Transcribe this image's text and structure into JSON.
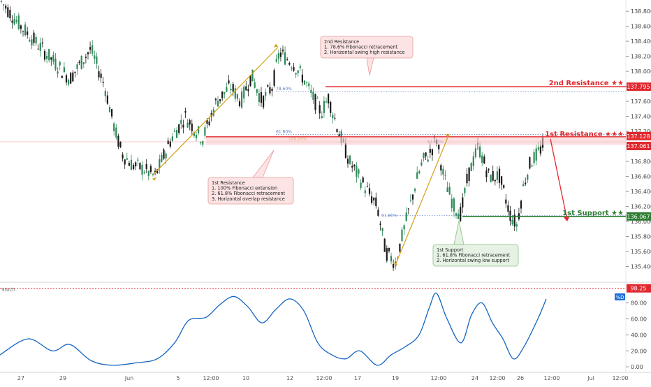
{
  "chart_data": [
    {
      "type": "candlestick",
      "instrument_pane": "price",
      "y_ticks": [
        135.4,
        135.6,
        135.8,
        136.0,
        136.2,
        136.4,
        136.6,
        136.8,
        137.0,
        137.2,
        137.4,
        137.6,
        137.8,
        138.0,
        138.2,
        138.4,
        138.6,
        138.8
      ],
      "ylim": [
        135.2,
        138.95
      ],
      "x_ticks": [
        "27",
        "29",
        "Jun",
        "5",
        "12:00",
        "10",
        "12",
        "12:00",
        "17",
        "19",
        "12:00",
        "24",
        "12:00",
        "26",
        "12:00",
        "Jul",
        "12:00"
      ],
      "price_labels": [
        {
          "label": "2nd Resistance ★★",
          "value": "137.795",
          "color": "#e0282e"
        },
        {
          "label": "1st Resistance ★★★",
          "value": "137.128",
          "color": "#e0282e"
        },
        {
          "label": "",
          "value": "137.061",
          "color": "#e0282e"
        },
        {
          "label": "1st Support ★★",
          "value": "136.067",
          "color": "#2e7d32"
        }
      ],
      "fib_labels": [
        "78.60%",
        "61.80%",
        "100.00%",
        "61.80%",
        "61.80%"
      ],
      "callouts": [
        {
          "id": "resistance2",
          "lines": [
            "2nd Resistance",
            "1. 78.6% Fibonacci retracement",
            "2. Horizontal swing high resistance"
          ]
        },
        {
          "id": "resistance1",
          "lines": [
            "1st Resistance",
            "1. 100% Fibonacci extension",
            "2. 61.8% Fibonacci retracement",
            "3. Horizontal overlap resistance"
          ]
        },
        {
          "id": "support1",
          "lines": [
            "1st Support",
            "1. 61.8% Fibonacci retracement",
            "2. Horizontal swing low support"
          ]
        }
      ],
      "colors": {
        "up": "#2e8b57",
        "down": "#1b1b1b",
        "resistance": "#e0282e",
        "support": "#2e7d32",
        "fib": "#d4a017",
        "stoch": "#1565c0"
      },
      "path_points": [
        [
          0,
          138.95
        ],
        [
          30,
          138.6
        ],
        [
          70,
          138.2
        ],
        [
          100,
          137.9
        ],
        [
          130,
          138.3
        ],
        [
          150,
          137.8
        ],
        [
          165,
          137.2
        ],
        [
          175,
          136.9
        ],
        [
          190,
          136.75
        ],
        [
          205,
          136.7
        ],
        [
          222,
          136.6
        ],
        [
          245,
          137.1
        ],
        [
          265,
          137.4
        ],
        [
          290,
          137.1
        ],
        [
          310,
          137.6
        ],
        [
          330,
          137.8
        ],
        [
          345,
          137.6
        ],
        [
          360,
          137.95
        ],
        [
          375,
          137.6
        ],
        [
          390,
          137.8
        ],
        [
          400,
          138.25
        ],
        [
          420,
          138.1
        ],
        [
          435,
          137.9
        ],
        [
          445,
          137.7
        ],
        [
          460,
          137.45
        ],
        [
          470,
          137.65
        ],
        [
          485,
          137.2
        ],
        [
          500,
          136.8
        ],
        [
          520,
          136.5
        ],
        [
          540,
          136.2
        ],
        [
          552,
          135.6
        ],
        [
          566,
          135.45
        ],
        [
          580,
          135.95
        ],
        [
          595,
          136.5
        ],
        [
          605,
          136.8
        ],
        [
          615,
          136.9
        ],
        [
          625,
          137.1
        ],
        [
          635,
          136.6
        ],
        [
          650,
          136.2
        ],
        [
          660,
          136.1
        ],
        [
          670,
          136.6
        ],
        [
          685,
          137.0
        ],
        [
          700,
          136.6
        ],
        [
          715,
          136.6
        ],
        [
          730,
          136.1
        ],
        [
          740,
          135.95
        ],
        [
          750,
          136.5
        ],
        [
          760,
          136.8
        ],
        [
          770,
          136.9
        ],
        [
          780,
          137.07
        ]
      ],
      "title": "",
      "xlabel": "",
      "ylabel": ""
    },
    {
      "type": "line",
      "instrument_pane": "oscillator",
      "indicator_label": "Stoch",
      "legend_badge": "%D",
      "overbought_value": "98.25",
      "y_ticks": [
        0.0,
        20.0,
        40.0,
        60.0,
        80.0
      ],
      "ylim": [
        -6,
        105
      ],
      "series": [
        {
          "name": "",
          "x": [
            0,
            40,
            75,
            100,
            130,
            160,
            195,
            225,
            250,
            270,
            295,
            315,
            335,
            355,
            375,
            395,
            415,
            435,
            455,
            475,
            495,
            515,
            540,
            560,
            580,
            600,
            615,
            625,
            640,
            660,
            675,
            690,
            705,
            720,
            735,
            750,
            770,
            782
          ],
          "values": [
            15,
            35,
            20,
            28,
            8,
            2,
            5,
            10,
            30,
            58,
            62,
            78,
            88,
            75,
            55,
            72,
            85,
            70,
            30,
            15,
            10,
            20,
            2,
            15,
            25,
            40,
            75,
            92,
            60,
            30,
            65,
            80,
            55,
            35,
            10,
            25,
            60,
            85
          ]
        }
      ]
    }
  ]
}
